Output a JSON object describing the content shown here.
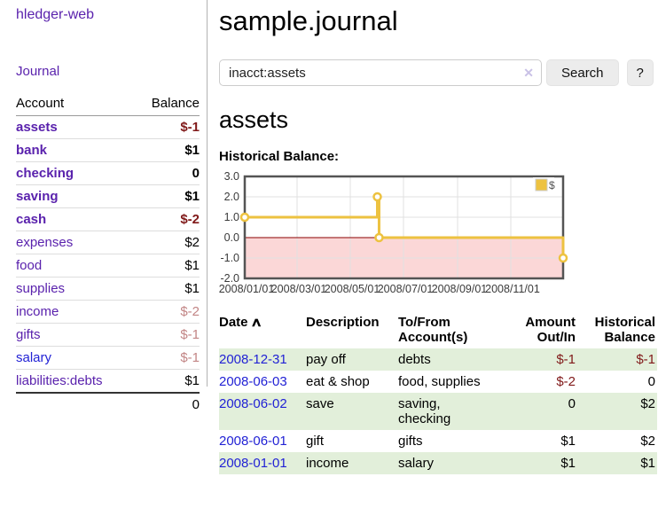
{
  "colors": {
    "purple": "#5a22ad",
    "blue": "#2222d5",
    "dark_red": "#801919",
    "faded_red": "#c28585",
    "stripe_green": "#e2efda",
    "series_yellow": "#edc240",
    "negative_fill": "#fbd7d7",
    "zero_line": "#8b0000",
    "axis_text": "#545454"
  },
  "app": {
    "brand": "hledger-web",
    "nav_journal": "Journal"
  },
  "sidebar": {
    "headers": {
      "account": "Account",
      "balance": "Balance"
    },
    "accounts": [
      {
        "name": "assets",
        "level": 1,
        "bold": true,
        "link": "purple",
        "balance": "$-1",
        "balance_class": "neg"
      },
      {
        "name": "bank",
        "level": 2,
        "bold": true,
        "link": "purple",
        "balance": "$1",
        "balance_class": ""
      },
      {
        "name": "checking",
        "level": 3,
        "bold": true,
        "link": "purple",
        "balance": "0",
        "balance_class": ""
      },
      {
        "name": "saving",
        "level": 3,
        "bold": true,
        "link": "purple",
        "balance": "$1",
        "balance_class": ""
      },
      {
        "name": "cash",
        "level": 2,
        "bold": true,
        "link": "purple",
        "balance": "$-2",
        "balance_class": "neg"
      },
      {
        "name": "expenses",
        "level": 1,
        "bold": false,
        "link": "purple",
        "balance": "$2",
        "balance_class": ""
      },
      {
        "name": "food",
        "level": 2,
        "bold": false,
        "link": "purple",
        "balance": "$1",
        "balance_class": ""
      },
      {
        "name": "supplies",
        "level": 2,
        "bold": false,
        "link": "purple",
        "balance": "$1",
        "balance_class": ""
      },
      {
        "name": "income",
        "level": 1,
        "bold": false,
        "link": "purple",
        "balance": "$-2",
        "balance_class": "neg-faded"
      },
      {
        "name": "gifts",
        "level": 2,
        "bold": false,
        "link": "purple",
        "balance": "$-1",
        "balance_class": "neg-faded"
      },
      {
        "name": "salary",
        "level": 2,
        "bold": false,
        "link": "blue",
        "balance": "$-1",
        "balance_class": "neg-faded"
      },
      {
        "name": "liabilities:debts",
        "level": 1,
        "bold": false,
        "link": "purple",
        "balance": "$1",
        "balance_class": ""
      }
    ],
    "total": "0"
  },
  "header": {
    "title": "sample.journal"
  },
  "search": {
    "value": "inacct:assets",
    "clear_icon": "✕",
    "search_label": "Search",
    "help_label": "?"
  },
  "register": {
    "heading": "assets",
    "chart_label": "Historical Balance:",
    "table_headers": {
      "date": "Date",
      "sort_icon": "∧",
      "description": "Description",
      "accounts_line1": "To/From",
      "accounts_line2": "Account(s)",
      "amount_line1": "Amount",
      "amount_line2": "Out/In",
      "balance_line1": "Historical",
      "balance_line2": "Balance"
    },
    "transactions": [
      {
        "date": "2008-12-31",
        "description": "pay off",
        "accounts": [
          "debts"
        ],
        "amount": "$-1",
        "amount_class": "neg",
        "balance": "$-1",
        "balance_class": "neg",
        "striped": true
      },
      {
        "date": "2008-06-03",
        "description": "eat & shop",
        "accounts": [
          "food, supplies"
        ],
        "amount": "$-2",
        "amount_class": "neg",
        "balance": "0",
        "balance_class": "",
        "striped": false
      },
      {
        "date": "2008-06-02",
        "description": "save",
        "accounts": [
          "saving,",
          "checking"
        ],
        "amount": "0",
        "amount_class": "",
        "balance": "$2",
        "balance_class": "",
        "striped": true
      },
      {
        "date": "2008-06-01",
        "description": "gift",
        "accounts": [
          "gifts"
        ],
        "amount": "$1",
        "amount_class": "",
        "balance": "$2",
        "balance_class": "",
        "striped": false
      },
      {
        "date": "2008-01-01",
        "description": "income",
        "accounts": [
          "salary"
        ],
        "amount": "$1",
        "amount_class": "",
        "balance": "$1",
        "balance_class": "",
        "striped": true
      }
    ]
  },
  "chart_data": {
    "type": "line",
    "title": "Historical Balance",
    "step": true,
    "series": [
      {
        "name": "$",
        "color": "#edc240",
        "points": [
          [
            "2008-01-01",
            1
          ],
          [
            "2008-06-01",
            2
          ],
          [
            "2008-06-03",
            0
          ],
          [
            "2008-12-31",
            -1
          ]
        ]
      }
    ],
    "xlim": [
      "2008-01-01",
      "2008-12-31"
    ],
    "ylim": [
      -2,
      3
    ],
    "y_ticks": [
      "3.0",
      "2.0",
      "1.0",
      "0.0",
      "-1.0",
      "-2.0"
    ],
    "x_ticks": [
      {
        "label": "2008/01/01",
        "date": "2008-01-01"
      },
      {
        "label": "2008/03/01",
        "date": "2008-03-01"
      },
      {
        "label": "2008/05/01",
        "date": "2008-05-01"
      },
      {
        "label": "2008/07/01",
        "date": "2008-07-01"
      },
      {
        "label": "2008/09/01",
        "date": "2008-09-01"
      },
      {
        "label": "2008/11/01",
        "date": "2008-11-01"
      }
    ],
    "legend": {
      "label": "$",
      "position": "top-right"
    },
    "grid": true,
    "negative_region_shaded": true
  }
}
